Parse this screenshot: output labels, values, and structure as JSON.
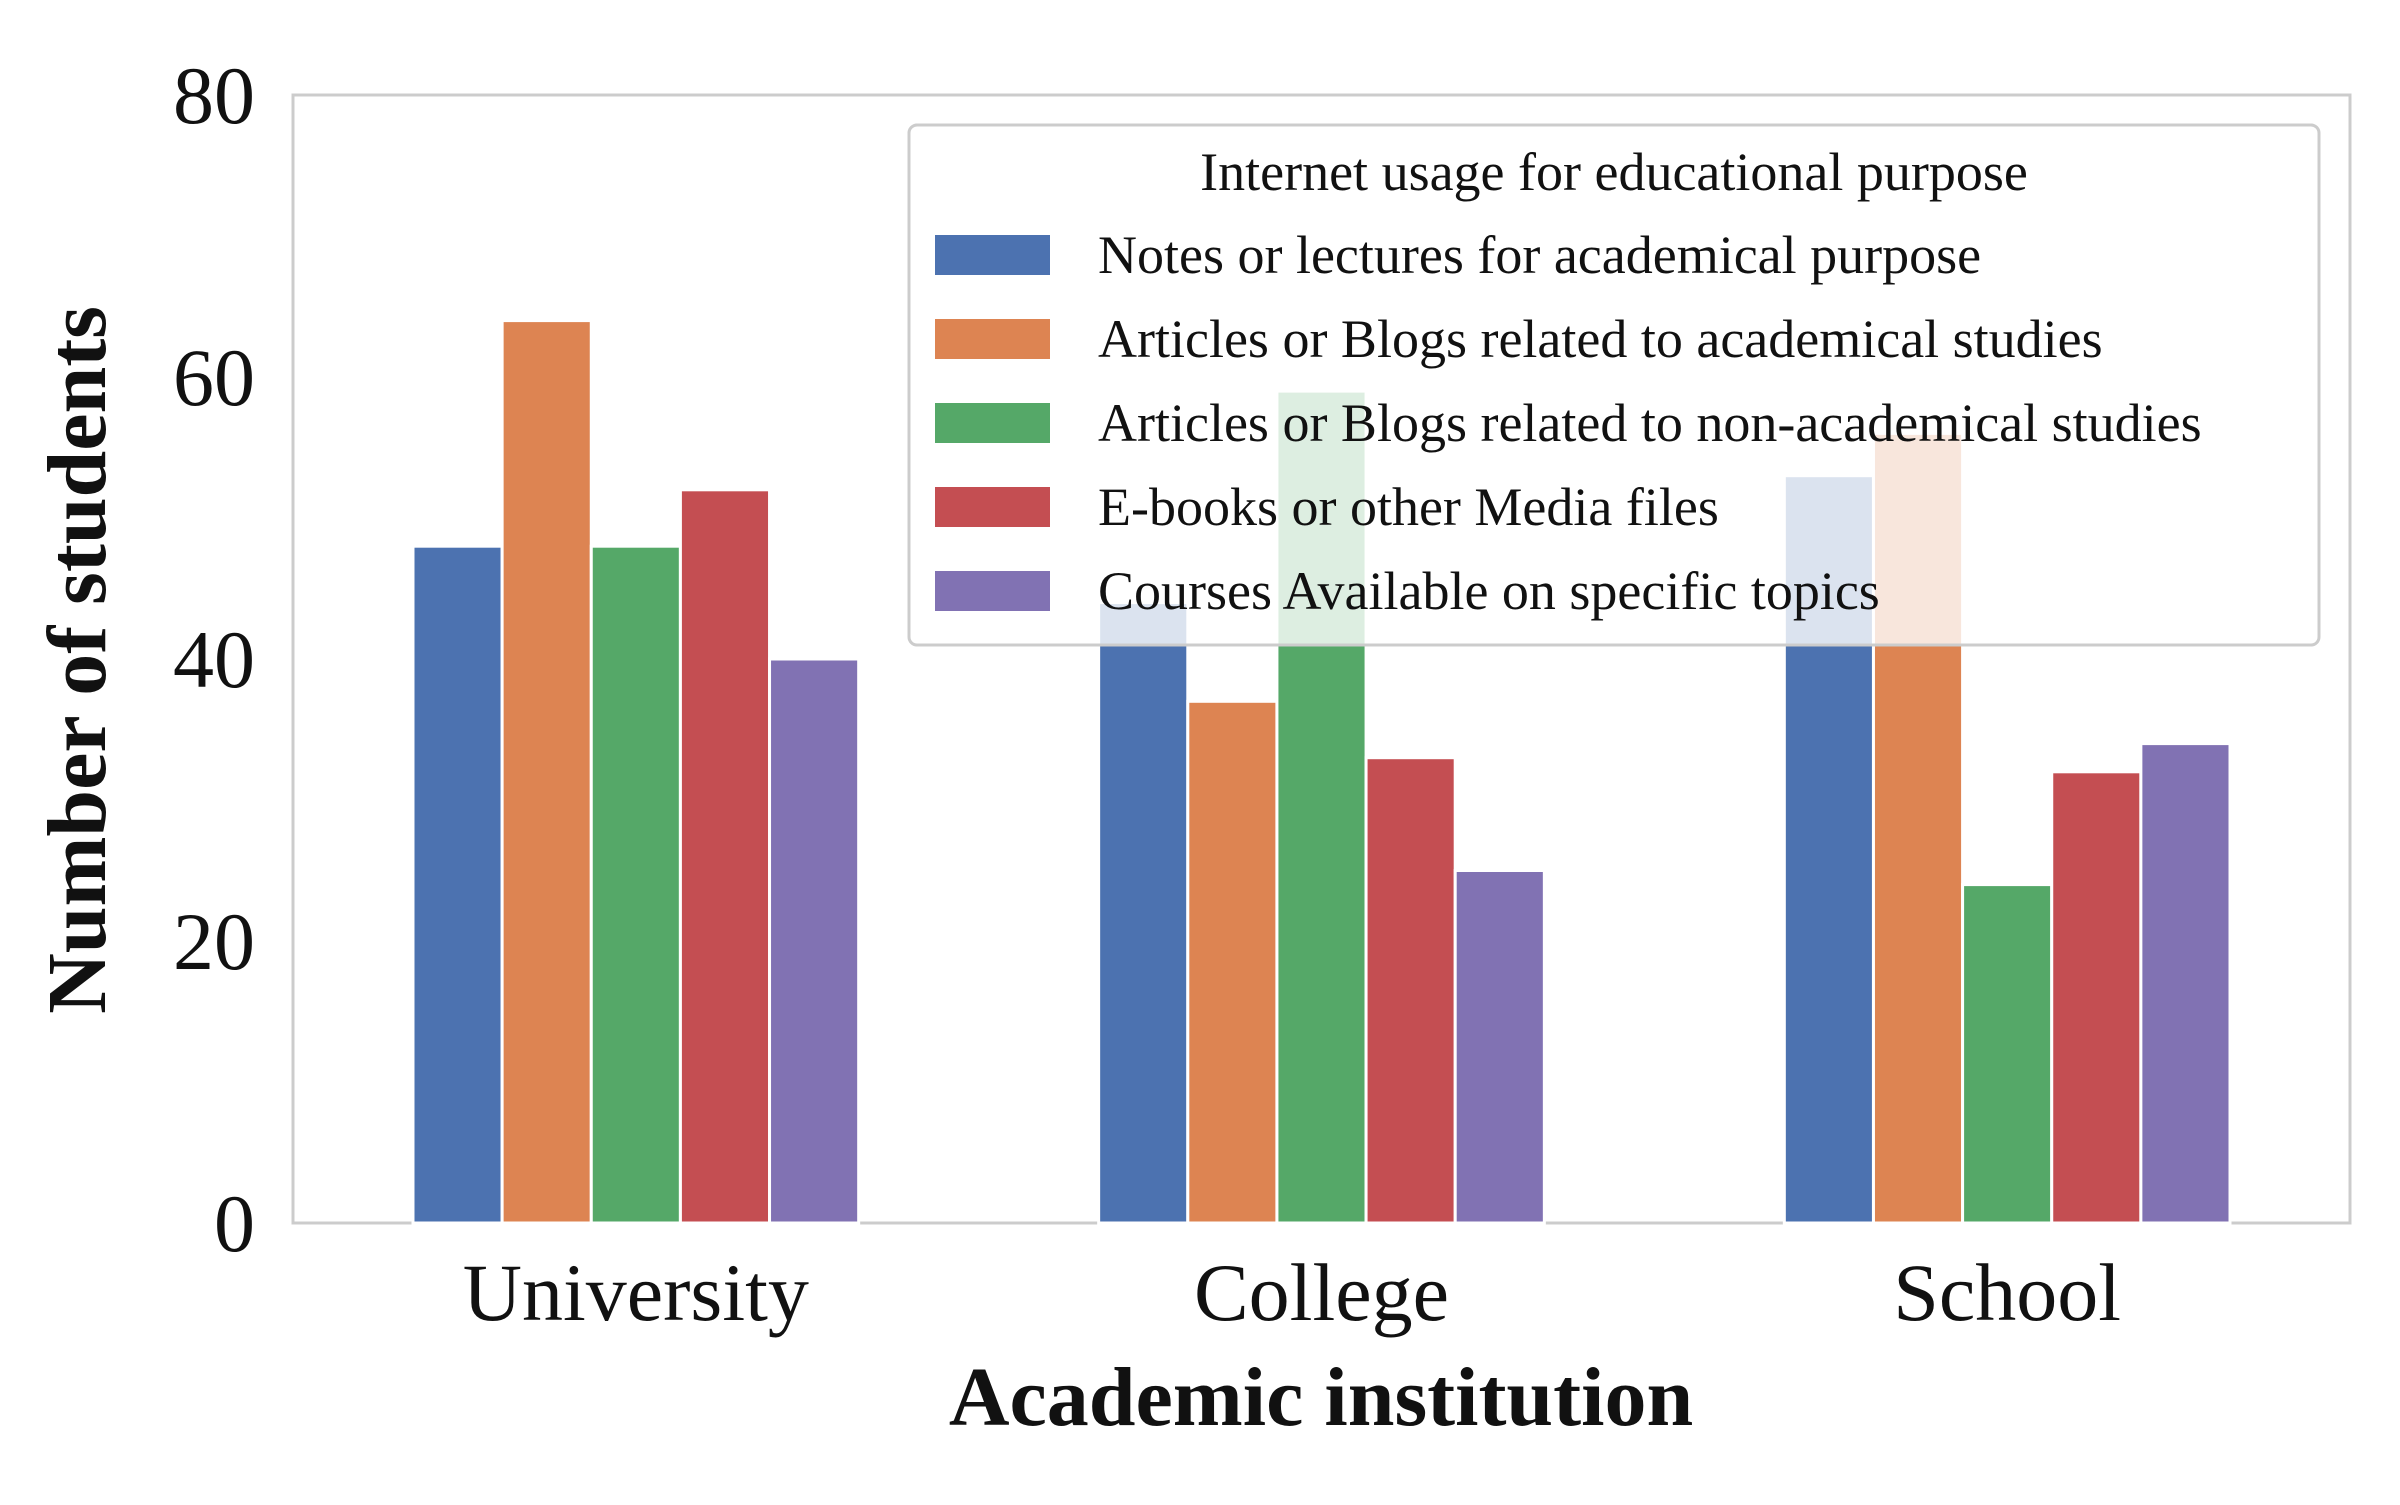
{
  "chart_data": {
    "type": "bar",
    "title": "",
    "xlabel": "Academic institution",
    "ylabel": "Number of students",
    "categories": [
      "University",
      "College",
      "School"
    ],
    "ylim": [
      0,
      80
    ],
    "yticks": [
      "0",
      "20",
      "40",
      "60",
      "80"
    ],
    "grid": false,
    "legend": {
      "title": "Internet usage for educational purpose",
      "placement": "top-right"
    },
    "series": [
      {
        "name": "Notes or lectures for academical purpose",
        "color": "#4c72b0",
        "values": [
          48,
          44,
          53
        ]
      },
      {
        "name": "Articles or Blogs related to academical studies",
        "color": "#dd8452",
        "values": [
          64,
          37,
          56
        ]
      },
      {
        "name": "Articles or Blogs related to non-academical studies",
        "color": "#55a868",
        "values": [
          48,
          59,
          24
        ]
      },
      {
        "name": "E-books or other Media files",
        "color": "#c44e52",
        "values": [
          52,
          33,
          32
        ]
      },
      {
        "name": "Courses Available on specific topics",
        "color": "#8172b3",
        "values": [
          40,
          25,
          34
        ]
      }
    ]
  }
}
